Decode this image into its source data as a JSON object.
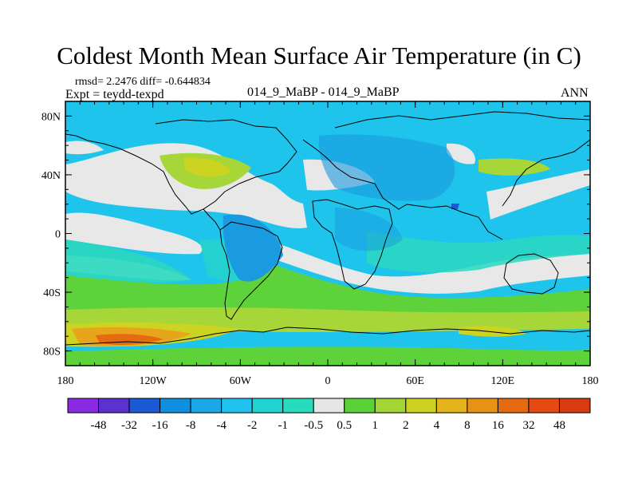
{
  "title": "Coldest Month Mean Surface Air Temperature (in C)",
  "stats": {
    "rmsd_diff": "rmsd= 2.2476 diff= -0.644834",
    "expt": "Expt = teydd-texpd"
  },
  "center_label": "014_9_MaBP - 014_9_MaBP",
  "season": "ANN",
  "lat_labels": [
    "80N",
    "40N",
    "0",
    "40S",
    "80S"
  ],
  "lon_labels": [
    "180",
    "120W",
    "60W",
    "0",
    "60E",
    "120E",
    "180"
  ],
  "colorbar": {
    "labels": [
      "-48",
      "-32",
      "-16",
      "-8",
      "-4",
      "-2",
      "-1",
      "-0.5",
      "0.5",
      "1",
      "2",
      "4",
      "8",
      "16",
      "32",
      "48"
    ],
    "colors": [
      "#8a2be2",
      "#5b32d0",
      "#1a5ad6",
      "#0f8fe0",
      "#1aa8e8",
      "#22c2ee",
      "#1ed3d0",
      "#27dcbc",
      "#e6e6e6",
      "#5ad237",
      "#a3d633",
      "#ccd11f",
      "#e6b41a",
      "#e69214",
      "#e66a10",
      "#e64a12",
      "#d93a0f"
    ]
  },
  "palette": {
    "white": "#e8e8e8",
    "teal": "#2ad8c0",
    "cyan": "#1cc4ec",
    "blue": "#1a9ae0",
    "green": "#5ed23a",
    "lime": "#a6d637",
    "olive": "#ccd320",
    "orange": "#e8a41a"
  }
}
